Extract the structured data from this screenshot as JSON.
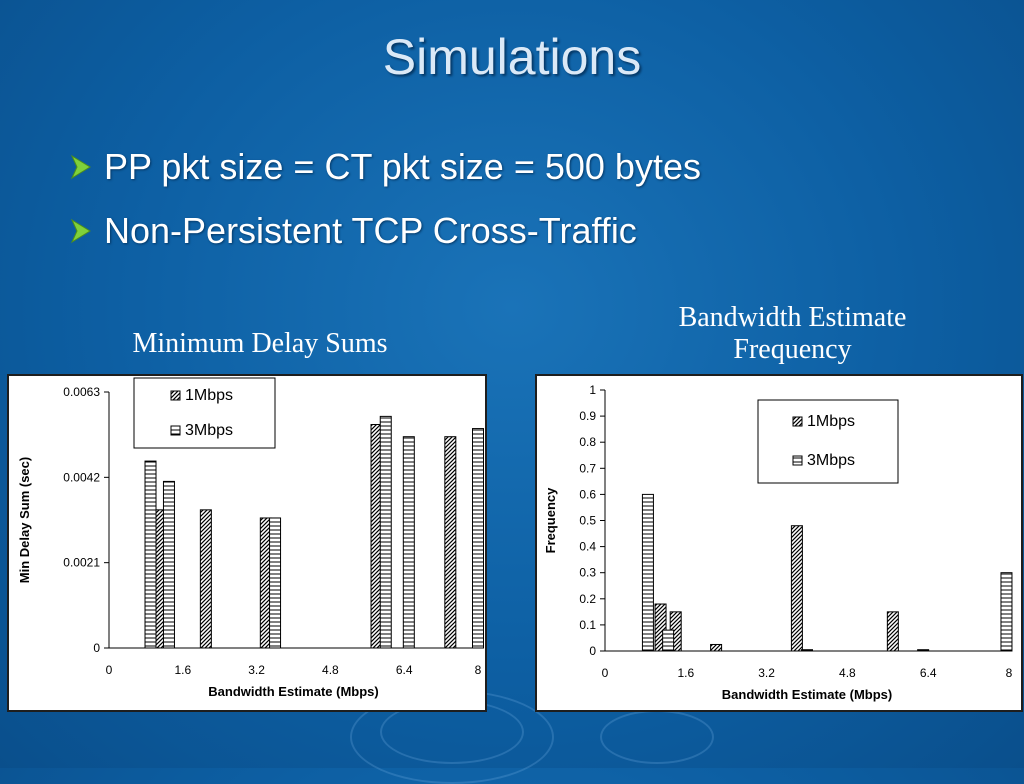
{
  "slide": {
    "title": "Simulations",
    "bullets": [
      "PP pkt size = CT pkt size = 500 bytes",
      "Non-Persistent TCP Cross-Traffic"
    ],
    "captions": {
      "left": "Minimum Delay Sums",
      "right_line1": "Bandwidth Estimate",
      "right_line2": "Frequency"
    },
    "colors": {
      "background": "#0d5fa3",
      "arrow": "#7fd13b"
    }
  },
  "chart_data": [
    {
      "type": "bar",
      "title": "Minimum Delay Sums",
      "xlabel": "Bandwidth Estimate (Mbps)",
      "ylabel": "Min Delay Sum (sec)",
      "xlim": [
        0,
        8
      ],
      "ylim": [
        0,
        0.0063
      ],
      "xticks": [
        0,
        1.6,
        3.2,
        4.8,
        6.4,
        8
      ],
      "xtick_labels": [
        "0",
        "1.6",
        "3.2",
        "4.8",
        "6.4",
        "8"
      ],
      "yticks": [
        0,
        0.0021,
        0.0042,
        0.0063
      ],
      "ytick_labels": [
        "0",
        "0.0021",
        "0.0042",
        "0.0063"
      ],
      "grid": false,
      "legend_position": "top-left",
      "series": [
        {
          "name": "1Mbps",
          "pattern": "hatch",
          "points": [
            [
              1.1,
              0.0034
            ],
            [
              2.1,
              0.0034
            ],
            [
              3.4,
              0.0032
            ],
            [
              5.8,
              0.0055
            ],
            [
              7.4,
              0.0052
            ]
          ]
        },
        {
          "name": "3Mbps",
          "pattern": "horizontal-lines",
          "points": [
            [
              0.9,
              0.0046
            ],
            [
              1.3,
              0.0041
            ],
            [
              3.6,
              0.0032
            ],
            [
              6.0,
              0.0057
            ],
            [
              6.5,
              0.0052
            ],
            [
              8.0,
              0.0054
            ]
          ]
        }
      ]
    },
    {
      "type": "bar",
      "title": "Bandwidth Estimate Frequency",
      "xlabel": "Bandwidth Estimate (Mbps)",
      "ylabel": "Frequency",
      "xlim": [
        0,
        8
      ],
      "ylim": [
        0,
        1
      ],
      "xticks": [
        0,
        1.6,
        3.2,
        4.8,
        6.4,
        8
      ],
      "xtick_labels": [
        "0",
        "1.6",
        "3.2",
        "4.8",
        "6.4",
        "8"
      ],
      "yticks": [
        0,
        0.1,
        0.2,
        0.3,
        0.4,
        0.5,
        0.6,
        0.7,
        0.8,
        0.9,
        1
      ],
      "ytick_labels": [
        "0",
        "0.1",
        "0.2",
        "0.3",
        "0.4",
        "0.5",
        "0.6",
        "0.7",
        "0.8",
        "0.9",
        "1"
      ],
      "grid": false,
      "legend_position": "top-right",
      "series": [
        {
          "name": "1Mbps",
          "pattern": "hatch",
          "points": [
            [
              1.1,
              0.18
            ],
            [
              1.4,
              0.15
            ],
            [
              2.2,
              0.025
            ],
            [
              3.8,
              0.48
            ],
            [
              5.7,
              0.15
            ]
          ]
        },
        {
          "name": "3Mbps",
          "pattern": "horizontal-lines",
          "points": [
            [
              0.85,
              0.6
            ],
            [
              1.25,
              0.08
            ],
            [
              4.0,
              0.005
            ],
            [
              6.3,
              0.005
            ],
            [
              7.95,
              0.3
            ]
          ]
        }
      ]
    }
  ]
}
